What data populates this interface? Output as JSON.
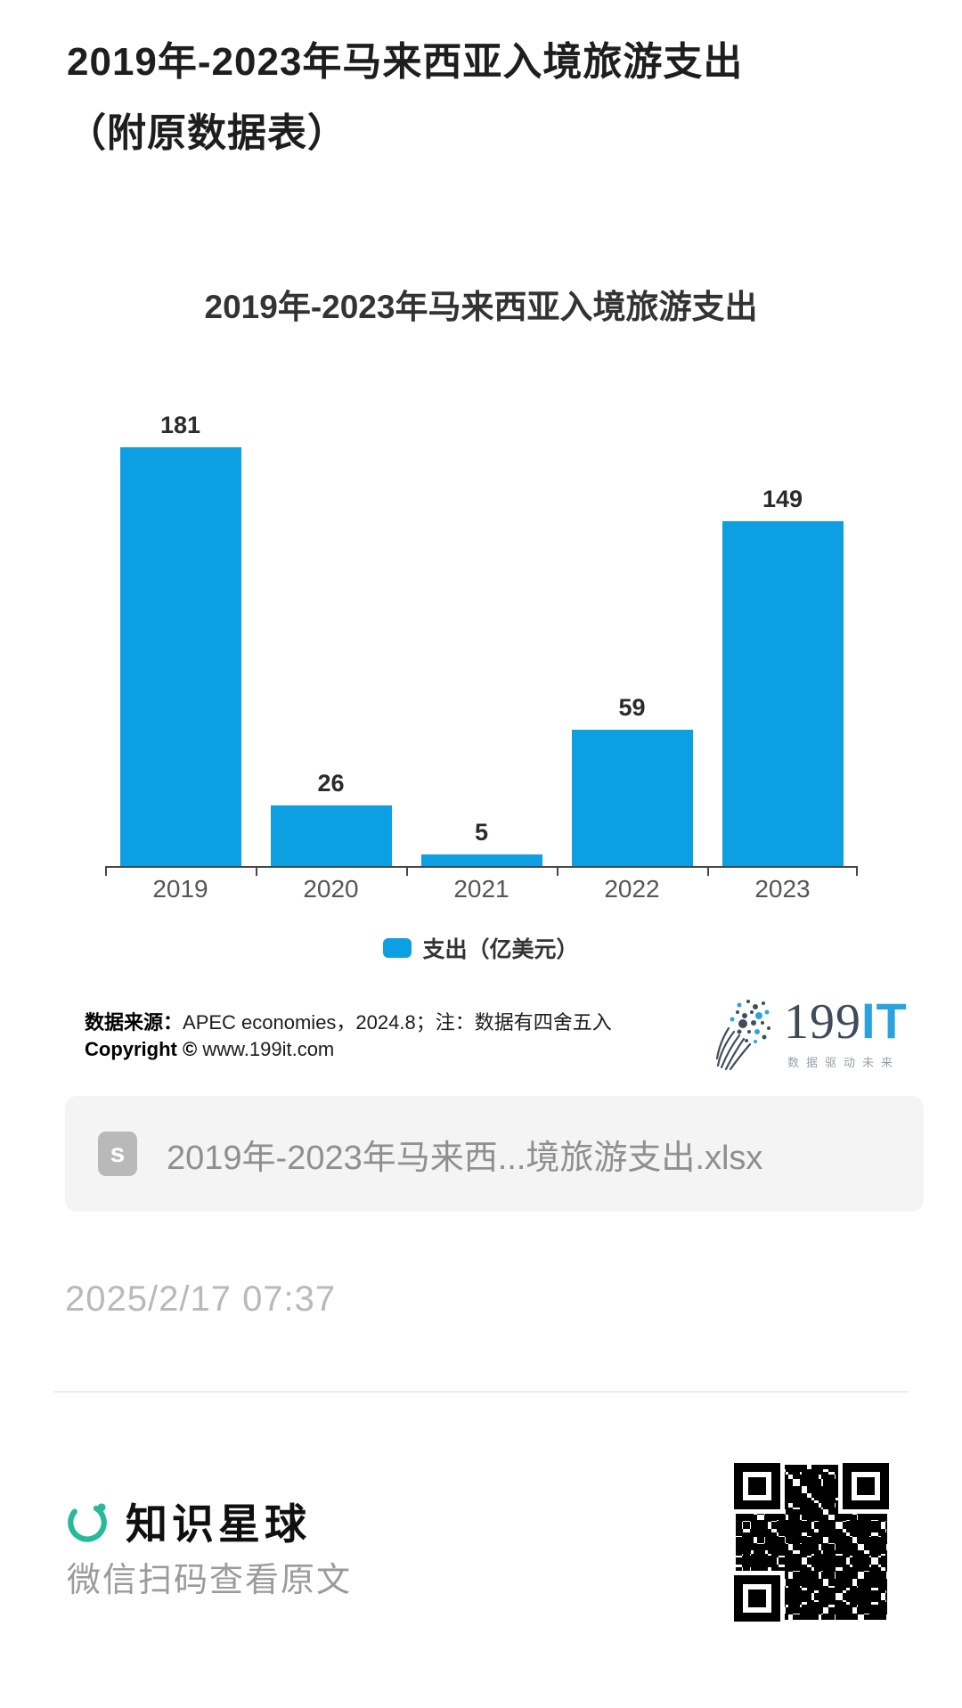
{
  "page": {
    "title_line1": "2019年-2023年马来西亚入境旅游支出",
    "title_line2": "（附原数据表）",
    "date": "2025/2/17 07:37"
  },
  "chart_data": {
    "type": "bar",
    "title": "2019年-2023年马来西亚入境旅游支出",
    "categories": [
      "2019",
      "2020",
      "2021",
      "2022",
      "2023"
    ],
    "values": [
      181,
      26,
      5,
      59,
      149
    ],
    "series": [
      {
        "name": "支出（亿美元）",
        "values": [
          181,
          26,
          5,
          59,
          149
        ]
      }
    ],
    "legend_position": "bottom",
    "xlabel": "",
    "ylabel": "",
    "ylim": [
      0,
      200
    ],
    "grid": false,
    "bar_color": "#0c9fe2",
    "value_labels_shown": true
  },
  "chart_source": {
    "source_label": "数据来源：",
    "source_text": "APEC economies，2024.8；注：数据有四舍五入",
    "copyright_label": "Copyright © ",
    "copyright_text": "www.199it.com"
  },
  "logo_199it": {
    "part_199": "199",
    "part_it": "IT",
    "tagline": "数据驱动未来"
  },
  "attachment": {
    "filename": "2019年-2023年马来西...境旅游支出.xlsx",
    "icon_glyph": "s"
  },
  "footer": {
    "brand_name": "知识星球",
    "caption": "微信扫码查看原文",
    "brand_color": "#26b99a"
  }
}
